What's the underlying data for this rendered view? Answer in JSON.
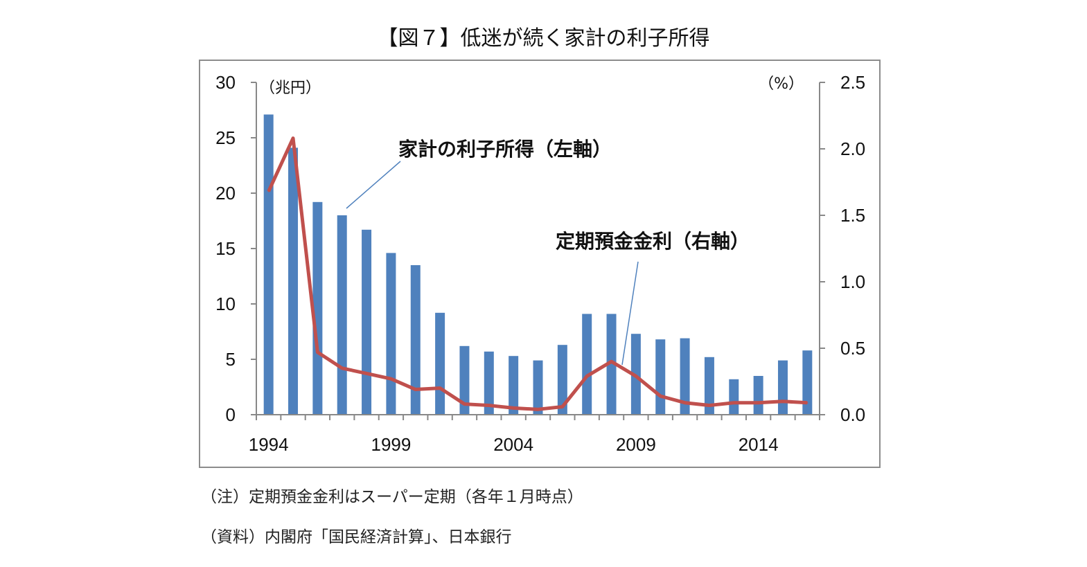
{
  "title": "【図７】低迷が続く家計の利子所得",
  "notes": [
    "（注）定期預金金利はスーパー定期（各年１月時点）",
    "（資料）内閣府「国民経済計算」、日本銀行"
  ],
  "colors": {
    "bars": "#4f81bd",
    "line": "#c0504d"
  },
  "chart_data": {
    "type": "bar+line",
    "title": "【図７】低迷が続く家計の利子所得",
    "x": [
      1994,
      1995,
      1996,
      1997,
      1998,
      1999,
      2000,
      2001,
      2002,
      2003,
      2004,
      2005,
      2006,
      2007,
      2008,
      2009,
      2010,
      2011,
      2012,
      2013,
      2014,
      2015,
      2016
    ],
    "x_tick_labels": [
      "1994",
      "1999",
      "2004",
      "2009",
      "2014"
    ],
    "y_left": {
      "unit_label": "（兆円）",
      "range": [
        0,
        30
      ],
      "ticks": [
        "0",
        "5",
        "10",
        "15",
        "20",
        "25",
        "30"
      ]
    },
    "y_right": {
      "unit_label": "（%）",
      "range": [
        0,
        2.5
      ],
      "ticks": [
        "0.0",
        "0.5",
        "1.0",
        "1.5",
        "2.0",
        "2.5"
      ]
    },
    "grid": false,
    "series": [
      {
        "name": "家計の利子所得（左軸）",
        "type": "bar",
        "axis": "left",
        "values": [
          27.1,
          24.1,
          19.2,
          18.0,
          16.7,
          14.6,
          13.5,
          9.2,
          6.2,
          5.7,
          5.3,
          4.9,
          6.3,
          9.1,
          9.1,
          7.3,
          6.8,
          6.9,
          5.2,
          3.2,
          3.5,
          4.9,
          5.8
        ]
      },
      {
        "name": "定期預金金利（右軸）",
        "type": "line",
        "axis": "right",
        "values": [
          1.68,
          2.08,
          0.47,
          0.35,
          0.31,
          0.27,
          0.19,
          0.2,
          0.08,
          0.07,
          0.05,
          0.04,
          0.06,
          0.29,
          0.4,
          0.29,
          0.14,
          0.09,
          0.07,
          0.09,
          0.09,
          0.1,
          0.09
        ]
      }
    ]
  }
}
